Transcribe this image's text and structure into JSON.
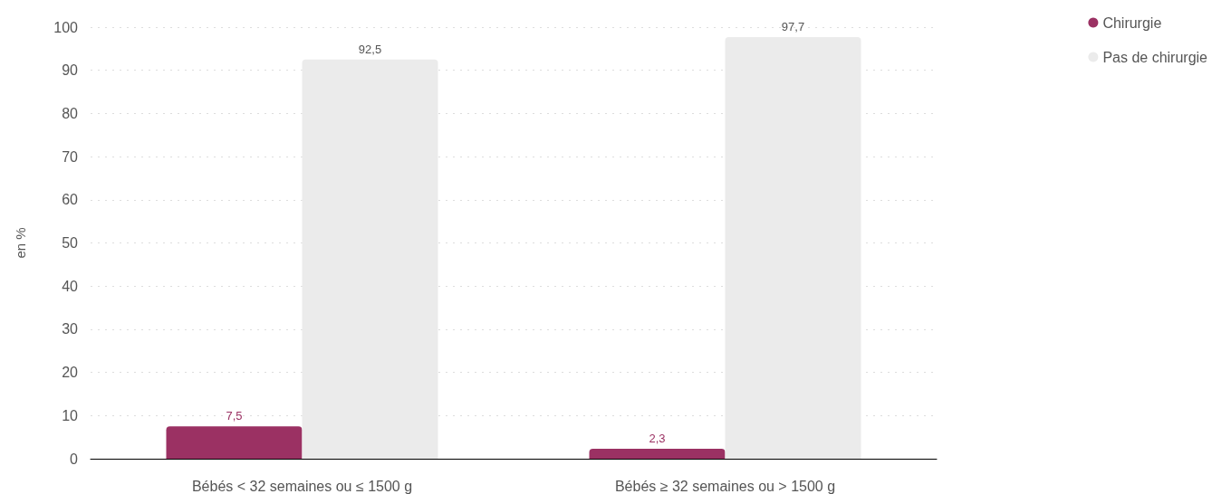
{
  "chart_data": {
    "type": "bar",
    "ylabel": "en %",
    "categories": [
      "Bébés < 32 semaines ou ≤ 1500 g",
      "Bébés ≥ 32 semaines ou > 1500 g"
    ],
    "series": [
      {
        "name": "Chirurgie",
        "color": "#9b3163",
        "values": [
          7.5,
          2.3
        ],
        "value_labels": [
          "7,5",
          "2,3"
        ]
      },
      {
        "name": "Pas de chirurgie",
        "color": "#ebebeb",
        "values": [
          92.5,
          97.7
        ],
        "value_labels": [
          "92,5",
          "97,7"
        ]
      }
    ],
    "ylim": [
      0,
      100
    ],
    "yticks": [
      0,
      10,
      20,
      30,
      40,
      50,
      60,
      70,
      80,
      90,
      100
    ],
    "grid": "y",
    "legend": "top right"
  }
}
